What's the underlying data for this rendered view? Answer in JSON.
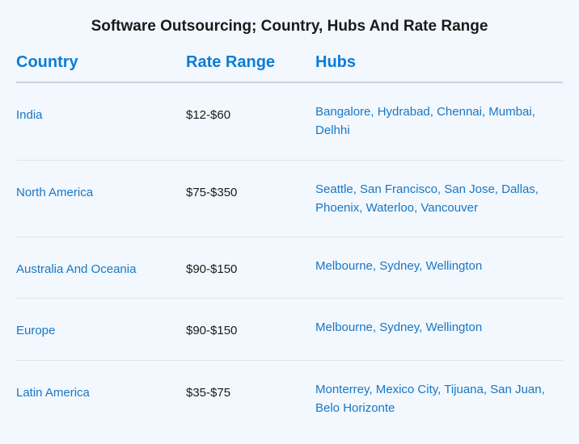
{
  "title": "Software Outsourcing; Country, Hubs And Rate Range",
  "background_color": "#f2f8fd",
  "title_color": "#1a1a1a",
  "header_text_color": "#0d7cd6",
  "cell_text_color": "#1976c5",
  "rate_text_color": "#1a1a1a",
  "header_border_color": "#c8d4dc",
  "row_border_color": "#dde6ec",
  "title_fontsize": 19,
  "header_fontsize": 20,
  "cell_fontsize": 15,
  "columns": {
    "country": "Country",
    "rate": "Rate Range",
    "hubs": "Hubs"
  },
  "column_widths": {
    "country": 210,
    "rate": 160
  },
  "rows": [
    {
      "country": "India",
      "rate": "$12-$60",
      "hubs": "Bangalore, Hydrabad, Chennai, Mumbai, Delhhi"
    },
    {
      "country": "North America",
      "rate": "$75-$350",
      "hubs": "Seattle, San Francisco, San Jose, Dallas, Phoenix, Waterloo, Vancouver"
    },
    {
      "country": "Australia And Oceania",
      "rate": "$90-$150",
      "hubs": "Melbourne, Sydney, Wellington"
    },
    {
      "country": "Europe",
      "rate": "$90-$150",
      "hubs": "Melbourne, Sydney, Wellington"
    },
    {
      "country": "Latin America",
      "rate": " $35-$75",
      "hubs": "Monterrey, Mexico City, Tijuana, San Juan, Belo Horizonte"
    }
  ]
}
